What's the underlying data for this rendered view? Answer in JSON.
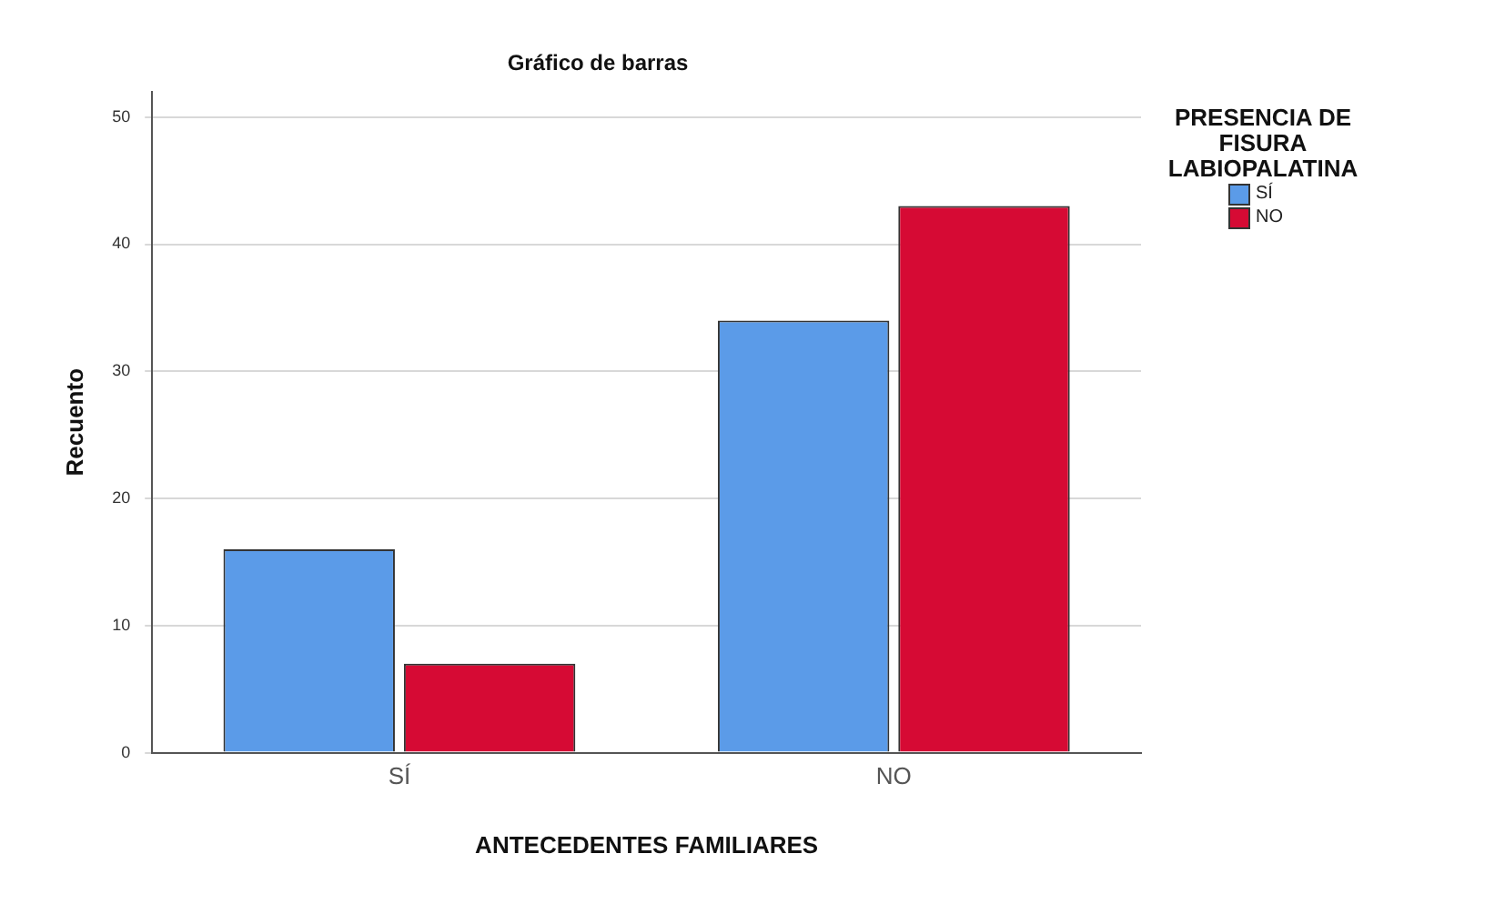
{
  "chart_data": {
    "type": "bar",
    "title": "Gráfico de barras",
    "xlabel": "ANTECEDENTES FAMILIARES",
    "ylabel": "Recuento",
    "legend_title": "PRESENCIA DE FISURA LABIOPALATINA",
    "categories": [
      "SÍ",
      "NO"
    ],
    "series": [
      {
        "name": "SÍ",
        "color": "#5b9be8",
        "values": [
          16,
          34
        ]
      },
      {
        "name": "NO",
        "color": "#d60a34",
        "values": [
          7,
          43
        ]
      }
    ],
    "ylim": [
      0,
      52
    ],
    "yticks": [
      0,
      10,
      20,
      30,
      40,
      50
    ],
    "grid": "y",
    "legend": "top right"
  }
}
